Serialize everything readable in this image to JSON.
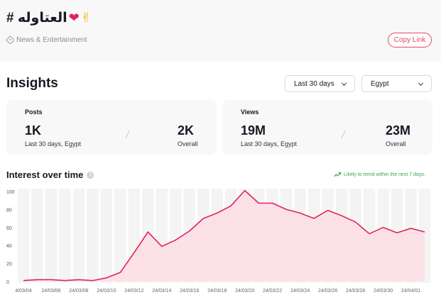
{
  "header": {
    "hashtag": "# العتاوله",
    "emoji_heart": "❤",
    "emoji_hand": "✌",
    "category": "News & Entertainment",
    "copy_link_label": "Copy Link"
  },
  "insights": {
    "title": "Insights",
    "range_select": "Last 30 days",
    "country_select": "Egypt"
  },
  "cards": {
    "posts": {
      "label": "Posts",
      "period_value": "1K",
      "period_label": "Last 30 days, Egypt",
      "overall_value": "2K",
      "overall_label": "Overall"
    },
    "views": {
      "label": "Views",
      "period_value": "19M",
      "period_label": "Last 30 days, Egypt",
      "overall_value": "23M",
      "overall_label": "Overall"
    }
  },
  "interest": {
    "title": "Interest over time",
    "info_icon": "i",
    "trend_note": "Likely to trend within the next 7 days."
  },
  "colors": {
    "accent": "#e5476d",
    "line": "#e0245e",
    "area": "#fbdde3",
    "trend": "#33a853"
  },
  "chart_data": {
    "type": "area",
    "title": "",
    "xlabel": "",
    "ylabel": "",
    "ylim": [
      0,
      100
    ],
    "y_ticks": [
      0,
      20,
      40,
      60,
      80,
      100
    ],
    "grid": false,
    "x": [
      "24/03/04",
      "24/03/05",
      "24/03/06",
      "24/03/07",
      "24/03/08",
      "24/03/09",
      "24/03/10",
      "24/03/11",
      "24/03/12",
      "24/03/13",
      "24/03/14",
      "24/03/15",
      "24/03/16",
      "24/03/17",
      "24/03/18",
      "24/03/19",
      "24/03/20",
      "24/03/21",
      "24/03/22",
      "24/03/23",
      "24/03/24",
      "24/03/25",
      "24/03/26",
      "24/03/27",
      "24/03/28",
      "24/03/29",
      "24/03/30",
      "24/03/31",
      "24/04/01",
      "24/04/02"
    ],
    "x_tick_labels": [
      "4/03/04",
      "24/03/06",
      "24/03/08",
      "24/03/10",
      "24/03/12",
      "24/03/14",
      "24/03/16",
      "24/03/18",
      "24/03/20",
      "24/03/22",
      "24/03/24",
      "24/03/26",
      "24/03/28",
      "24/03/30",
      "24/04/01"
    ],
    "series": [
      {
        "values": [
          1,
          2,
          2,
          1,
          2,
          1,
          4,
          10,
          32,
          55,
          39,
          46,
          56,
          70,
          76,
          84,
          101,
          87,
          87,
          80,
          76,
          70,
          79,
          73,
          66,
          53,
          60,
          54,
          59,
          55
        ]
      }
    ]
  }
}
